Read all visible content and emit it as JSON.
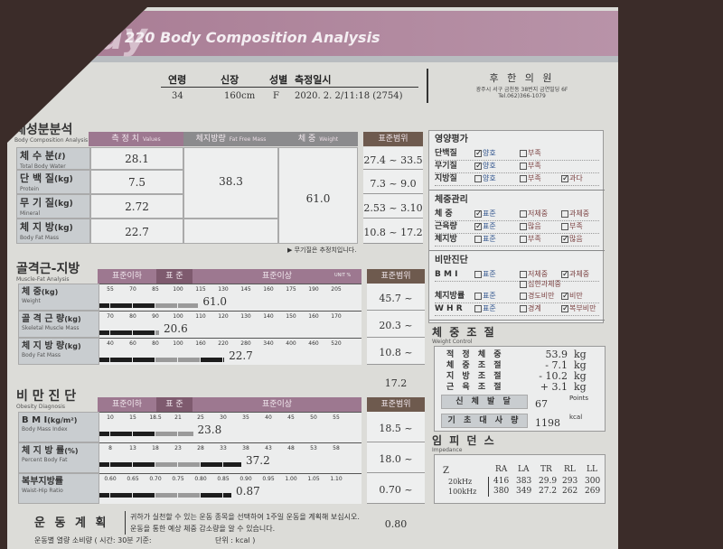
{
  "header": {
    "logo": "dy",
    "title": "220 Body Composition Analysis"
  },
  "info": {
    "labels": [
      "연령",
      "신장",
      "성별",
      "측정일시"
    ],
    "values": [
      "34",
      "160cm",
      "F",
      "2020. 2. 2/11:18   (2754)"
    ],
    "clinic": "후 한 의 원",
    "address": "광주시 서구 금천동 38번지 금연빌딩 6F",
    "tel": "Tel.062)366-1079"
  },
  "composition": {
    "title": "체성분분석",
    "subtitle": "Body Composition Analysis",
    "headers": [
      "측 정 치",
      "체지방량",
      "체      중",
      "표준범위"
    ],
    "header_subs": [
      "Values",
      "Fat Free Mass",
      "Weight"
    ],
    "rows": [
      {
        "label": "체 수 분",
        "unit": "(ℓ)",
        "sub": "Total Body Water",
        "value": "28.1",
        "range": "27.4 ~ 33.5"
      },
      {
        "label": "단 백 질",
        "unit": "(kg)",
        "sub": "Protein",
        "value": "7.5",
        "range": "7.3 ~ 9.0"
      },
      {
        "label": "무 기 질",
        "unit": "(kg)",
        "sub": "Mineral",
        "value": "2.72",
        "range": "2.53 ~ 3.10"
      },
      {
        "label": "체 지 방",
        "unit": "(kg)",
        "sub": "Body Fat Mass",
        "value": "22.7",
        "range": "10.8 ~ 17.2"
      }
    ],
    "fat_free_mass": "38.3",
    "weight": "61.0",
    "note": "▶ 무기질은 추정치입니다."
  },
  "muscle_fat": {
    "title": "골격근-지방",
    "subtitle": "Muscle-Fat Analysis",
    "headers": [
      "표준이하",
      "표 준",
      "표준이상",
      "표준범위"
    ],
    "unit_label": "UNIT %",
    "rows": [
      {
        "label": "체      중",
        "unit": "(kg)",
        "sub": "Weight",
        "ticks": [
          "55",
          "70",
          "85",
          "100",
          "115",
          "130",
          "145",
          "160",
          "175",
          "190",
          "205"
        ],
        "level": 114,
        "value": "61.0",
        "range": "45.7 ~ 61.8"
      },
      {
        "label": "골 격 근 량",
        "unit": "(kg)",
        "sub": "Skeletal Muscle Mass",
        "ticks": [
          "70",
          "80",
          "90",
          "100",
          "110",
          "120",
          "130",
          "140",
          "150",
          "160",
          "170"
        ],
        "level": 92,
        "value": "20.6",
        "range": "20.3 ~ 24.9"
      },
      {
        "label": "체 지 방 량",
        "unit": "(kg)",
        "sub": "Body Fat Mass",
        "ticks": [
          "40",
          "60",
          "80",
          "100",
          "160",
          "220",
          "280",
          "340",
          "400",
          "460",
          "520"
        ],
        "level": 225,
        "value": "22.7",
        "range": "10.8 ~ 17.2"
      }
    ]
  },
  "obesity": {
    "title": "비 만 진 단",
    "subtitle": "Obesity Diagnosis",
    "headers": [
      "표준이하",
      "표 준",
      "표준이상",
      "표준범위"
    ],
    "rows": [
      {
        "label": "B  M  I",
        "unit": "(kg/m²)",
        "sub": "Body Mass Index",
        "ticks": [
          "10",
          "15",
          "18.5",
          "21",
          "25",
          "30",
          "35",
          "40",
          "45",
          "50",
          "55"
        ],
        "level": 23.8,
        "value": "23.8",
        "range": "18.5 ~ 23.0"
      },
      {
        "label": "체 지 방 률",
        "unit": "(%)",
        "sub": "Percent Body Fat",
        "ticks": [
          "8",
          "13",
          "18",
          "23",
          "28",
          "33",
          "38",
          "43",
          "48",
          "53",
          "58"
        ],
        "level": 37.2,
        "value": "37.2",
        "range": "18.0 ~ 28.0"
      },
      {
        "label": "복부지방률",
        "unit": "",
        "sub": "Waist-Hip Ratio",
        "ticks": [
          "0.60",
          "0.65",
          "0.70",
          "0.75",
          "0.80",
          "0.85",
          "0.90",
          "0.95",
          "1.00",
          "1.05",
          "1.10"
        ],
        "level": 0.87,
        "value": "0.87",
        "range": "0.70 ~ 0.80"
      }
    ]
  },
  "evaluation": {
    "nutrition": {
      "title": "영양평가",
      "rows": [
        {
          "label": "단백질",
          "opts": [
            "양호",
            "부족"
          ],
          "checked": "양호"
        },
        {
          "label": "무기질",
          "opts": [
            "양호",
            "부족"
          ],
          "checked": "양호"
        },
        {
          "label": "지방질",
          "opts": [
            "양호",
            "부족",
            "과다"
          ],
          "checked": "과다"
        }
      ]
    },
    "weight_mgmt": {
      "title": "체중관리",
      "rows": [
        {
          "label": "체    중",
          "opts": [
            "표준",
            "저체중",
            "과체중"
          ],
          "checked": "표준"
        },
        {
          "label": "근육량",
          "opts": [
            "표준",
            "많음",
            "부족"
          ],
          "checked": "표준"
        },
        {
          "label": "체지방",
          "opts": [
            "표준",
            "부족",
            "많음"
          ],
          "checked": "많음"
        }
      ]
    },
    "obesity_dx": {
      "title": "비만진단",
      "rows": [
        {
          "label": "B M I",
          "opts": [
            "표준",
            "저체중",
            "과체중",
            "심한과체중"
          ],
          "checked": "과체중"
        },
        {
          "label": "체지방률",
          "opts": [
            "표준",
            "경도비만",
            "비만"
          ],
          "checked": "비만"
        },
        {
          "label": "W H R",
          "opts": [
            "표준",
            "경계",
            "복부비만"
          ],
          "checked": "복부비만"
        }
      ]
    }
  },
  "weight_control": {
    "title": "체 중 조 절",
    "subtitle": "Weight Control",
    "rows": [
      {
        "label": "적 정 체 중",
        "value": "53.9",
        "unit": "kg"
      },
      {
        "label": "체 중 조 절",
        "value": "- 7.1",
        "unit": "kg"
      },
      {
        "label": "지 방 조 절",
        "value": "- 10.2",
        "unit": "kg"
      },
      {
        "label": "근 육 조 절",
        "value": "+ 3.1",
        "unit": "kg"
      }
    ],
    "fitness": {
      "label": "신 체 발 달",
      "value": "67",
      "unit": "Points"
    },
    "bmr": {
      "label": "기 초 대 사 량",
      "value": "1198",
      "unit": "kcal"
    }
  },
  "impedance": {
    "title": "임 피 던 스",
    "subtitle": "Impedance",
    "z": "Z",
    "cols": [
      "RA",
      "LA",
      "TR",
      "RL",
      "LL"
    ],
    "rows": [
      {
        "freq": "20kHz",
        "vals": [
          "416",
          "383",
          "29.9",
          "293",
          "300"
        ]
      },
      {
        "freq": "100kHz",
        "vals": [
          "380",
          "349",
          "27.2",
          "262",
          "269"
        ]
      }
    ]
  },
  "exercise": {
    "title": "운 동 계 획",
    "line1": "귀하가 실천할 수 있는 운동 종목을 선택하여 1주일 운동을 계획해 보십시오.",
    "line2": "운동을 통한 예상 체중 감소량을 알 수 있습니다.",
    "footer": "운동별 열량 소비량 ( 시간: 30분  기준:",
    "unit": "단위 : kcal )"
  },
  "colors": {
    "band": "#a77a92",
    "header_pink": "#9d7890",
    "header_brown": "#6e5a4e",
    "background": "#3b2c29"
  }
}
